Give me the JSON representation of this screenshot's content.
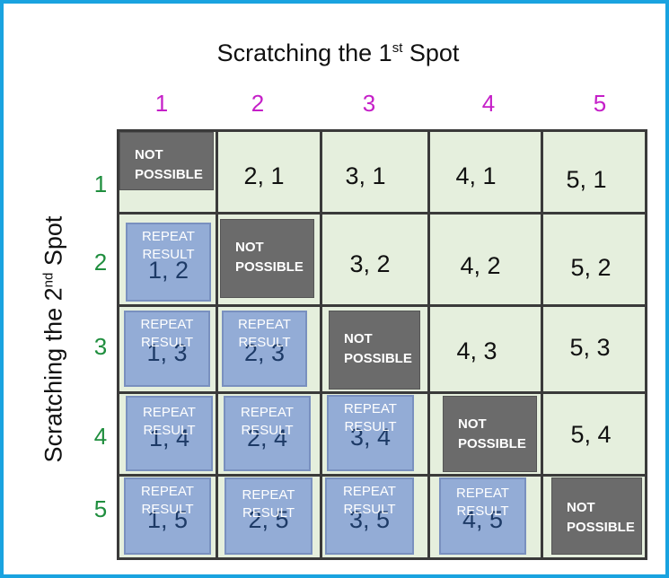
{
  "top_title": {
    "text": "Scratching the 1",
    "sup": "st",
    "tail": " Spot"
  },
  "left_title": {
    "text": "Scratching the 2",
    "sup": "nd",
    "tail": " Spot"
  },
  "columns": [
    "1",
    "2",
    "3",
    "4",
    "5"
  ],
  "rows": [
    "1",
    "2",
    "3",
    "4",
    "5"
  ],
  "labels": {
    "not_possible_1": "NOT",
    "not_possible_2": "POSSIBLE",
    "repeat_1": "REPEAT",
    "repeat_2": "RESULT"
  },
  "cells": [
    [
      "NOT POSSIBLE",
      "2, 1",
      "3, 1",
      "4, 1",
      "5, 1"
    ],
    [
      "1, 2",
      "NOT POSSIBLE",
      "3, 2",
      "4, 2",
      "5, 2"
    ],
    [
      "1, 3",
      "2, 3",
      "NOT POSSIBLE",
      "4, 3",
      "5, 3"
    ],
    [
      "1, 4",
      "2, 4",
      "3, 4",
      "NOT POSSIBLE",
      "5, 4"
    ],
    [
      "1, 5",
      "2, 5",
      "3, 5",
      "4, 5",
      "NOT POSSIBLE"
    ]
  ],
  "colors": {
    "frame": "#1aa3e0",
    "column_labels": "#c51fc8",
    "row_labels": "#1f8e3e",
    "grid_bg": "#e5efdd",
    "not_possible": "#6b6b6b",
    "repeat_result": "#93acd6"
  }
}
